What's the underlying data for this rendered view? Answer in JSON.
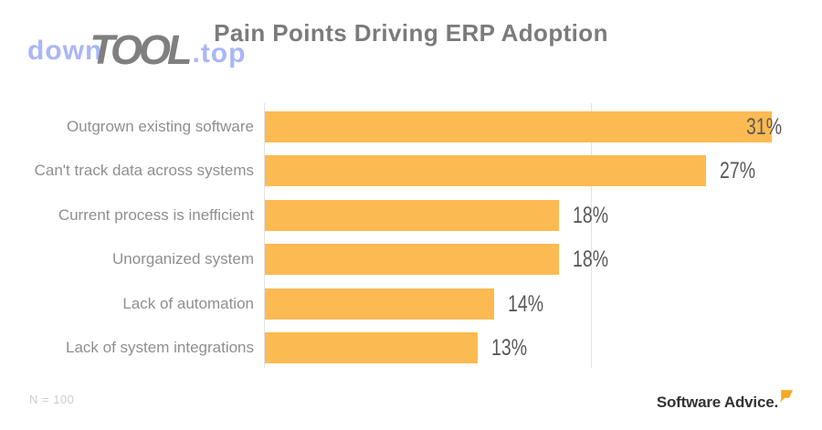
{
  "title": "Pain Points Driving ERP Adoption",
  "watermark": {
    "prefix": "down",
    "middle": "TOOL",
    "suffix": ".top"
  },
  "chart_data": {
    "type": "bar",
    "orientation": "horizontal",
    "title": "Pain Points Driving ERP Adoption",
    "categories": [
      "Outgrown existing software",
      "Can't track data across systems",
      "Current process is inefficient",
      "Unorganized system",
      "Lack of automation",
      "Lack of system integrations"
    ],
    "values": [
      31,
      27,
      18,
      18,
      14,
      13
    ],
    "value_labels": [
      "31%",
      "27%",
      "18%",
      "18%",
      "14%",
      "13%"
    ],
    "xlabel": "",
    "ylabel": "",
    "xlim": [
      0,
      31
    ],
    "grid_x_percent": [
      0,
      20
    ],
    "legend": "none",
    "bar_color": "#FCBA52"
  },
  "footer": {
    "sample_label": "N = 100",
    "brand": "Software Advice."
  },
  "colors": {
    "bar": "#FCBA52",
    "brand_bubble": "#F7A823",
    "title_text": "#7B7B7B",
    "category_text": "#8F8F8F",
    "value_text": "#595959",
    "gridline": "#E3E3E3",
    "watermark_blue": "#A9B6FA",
    "watermark_gray": "#7F7F7F",
    "footnote_text": "#CDCDCD",
    "brand_text": "#333333"
  }
}
